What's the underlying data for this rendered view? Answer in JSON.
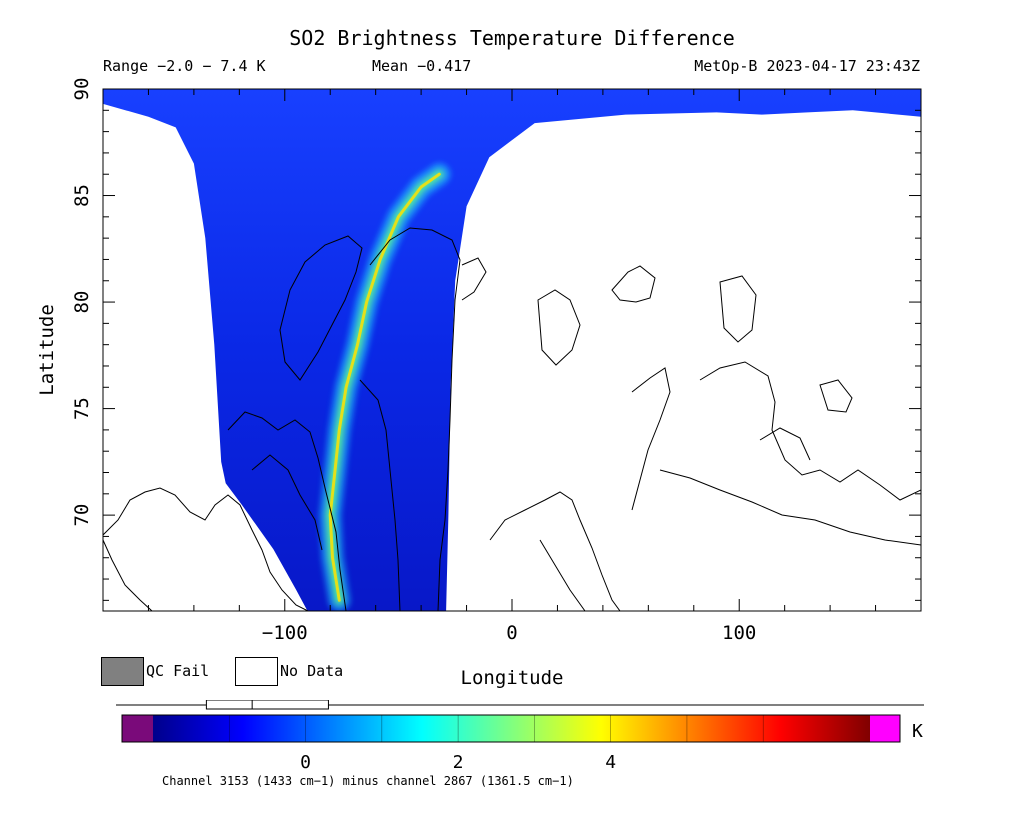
{
  "header": {
    "title": "SO2 Brightness Temperature Difference",
    "range": "Range −2.0 − 7.4 K",
    "mean": "Mean −0.417",
    "satellite": "MetOp-B 2023-04-17 23:43Z"
  },
  "legend": {
    "qc_fail": "QC Fail",
    "no_data": "No Data",
    "qc_fail_color": "#808080",
    "no_data_color": "#ffffff"
  },
  "chart_data": {
    "type": "heatmap",
    "title": "SO2 Brightness Temperature Difference",
    "xlabel": "Longitude",
    "ylabel": "Latitude",
    "xlim": [
      -180,
      180
    ],
    "ylim": [
      65.5,
      90
    ],
    "x_ticks": [
      -100,
      0,
      100
    ],
    "x_tick_labels": [
      "−100",
      "0",
      "100"
    ],
    "y_ticks": [
      70,
      75,
      80,
      85,
      90
    ],
    "y_tick_labels": [
      "70",
      "75",
      "80",
      "85",
      "90"
    ],
    "value_range_K": [
      -2.0,
      7.4
    ],
    "mean_K": -0.417,
    "swath_outline": [
      [
        -180,
        89.3
      ],
      [
        -160,
        88.7
      ],
      [
        -148,
        88.2
      ],
      [
        -140,
        86.5
      ],
      [
        -135,
        83
      ],
      [
        -131,
        78
      ],
      [
        -128,
        72.5
      ],
      [
        -126,
        71.5
      ],
      [
        -119,
        70.5
      ],
      [
        -105,
        68.4
      ],
      [
        -95,
        66.5
      ],
      [
        -90,
        65.5
      ],
      [
        -29,
        65.5
      ],
      [
        -28,
        70
      ],
      [
        -27,
        76
      ],
      [
        -25,
        81
      ],
      [
        -20,
        84.5
      ],
      [
        -10,
        86.8
      ],
      [
        10,
        88.4
      ],
      [
        50,
        88.8
      ],
      [
        90,
        88.9
      ],
      [
        110,
        88.8
      ],
      [
        130,
        88.9
      ],
      [
        150,
        89.0
      ],
      [
        180,
        88.7
      ],
      [
        180,
        90
      ],
      [
        -180,
        90
      ]
    ],
    "plume": [
      [
        -76,
        66
      ],
      [
        -79,
        68
      ],
      [
        -80,
        70
      ],
      [
        -78,
        72
      ],
      [
        -76,
        74
      ],
      [
        -73,
        76
      ],
      [
        -68,
        78
      ],
      [
        -64,
        80
      ],
      [
        -58,
        82
      ],
      [
        -50,
        84
      ],
      [
        -40,
        85.4
      ],
      [
        -32,
        86
      ]
    ],
    "colorbar": {
      "min": -2.0,
      "max": 7.4,
      "tick_values": [
        0,
        2,
        4
      ],
      "tick_labels": [
        "0",
        "2",
        "4"
      ],
      "unit": "K",
      "under_color": "#7a0a7a",
      "over_color": "#ff00ff",
      "stops": [
        "#00008b",
        "#0000ff",
        "#0080ff",
        "#00ffff",
        "#80ff80",
        "#ffff00",
        "#ff8000",
        "#ff0000",
        "#800000"
      ],
      "caption": "Channel 3153 (1433 cm−1) minus channel 2867 (1361.5 cm−1)"
    },
    "distribution_box": {
      "q1": -1.3,
      "median": -0.7,
      "q3": 0.3
    }
  }
}
